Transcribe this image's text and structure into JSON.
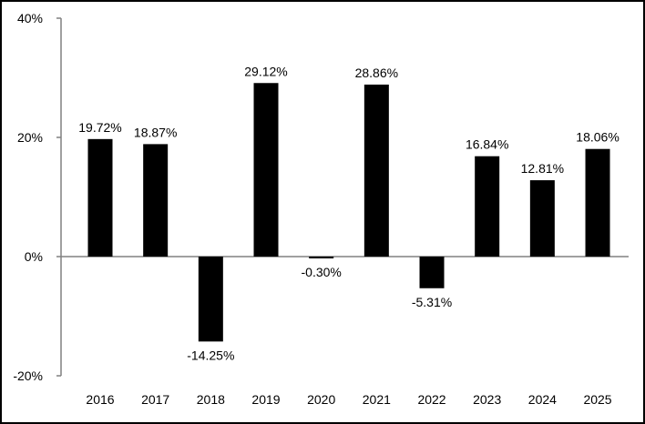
{
  "chart_data": {
    "type": "bar",
    "title": "",
    "xlabel": "",
    "ylabel": "",
    "categories": [
      "2016",
      "2017",
      "2018",
      "2019",
      "2020",
      "2021",
      "2022",
      "2023",
      "2024",
      "2025"
    ],
    "values": [
      19.72,
      18.87,
      -14.25,
      29.12,
      -0.3,
      28.86,
      -5.31,
      16.84,
      12.81,
      18.06
    ],
    "data_labels": [
      "19.72%",
      "18.87%",
      "-14.25%",
      "29.12%",
      "-0.30%",
      "28.86%",
      "-5.31%",
      "16.84%",
      "12.81%",
      "18.06%"
    ],
    "ylim": [
      -20,
      40
    ],
    "yticks": [
      40,
      20,
      0,
      -20
    ],
    "ytick_labels": [
      "40%",
      "20%",
      "0%",
      "-20%"
    ],
    "grid": false,
    "legend": "none",
    "bar_color": "#000000",
    "axis_color": "#808080"
  }
}
